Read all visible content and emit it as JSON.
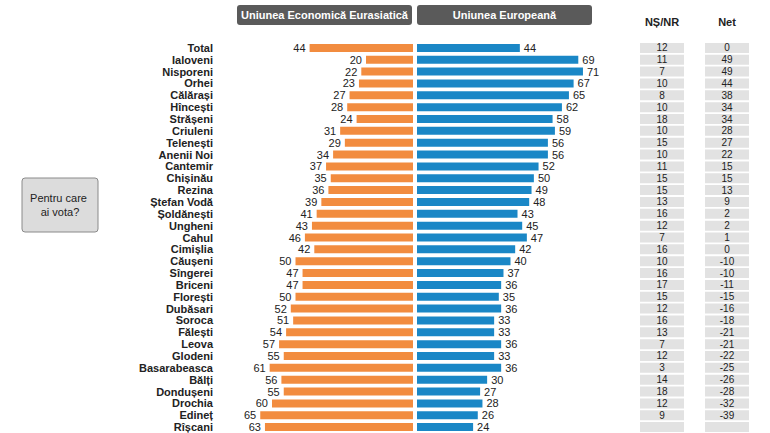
{
  "chart_data": {
    "type": "bar",
    "orientation": "horizontal",
    "ylabel": "Pentru care ai vota?",
    "categories": [
      "Total",
      "Ialoveni",
      "Nisporeni",
      "Orhei",
      "Călărași",
      "Hîncești",
      "Strășeni",
      "Criuleni",
      "Telenești",
      "Anenii Noi",
      "Cantemir",
      "Chișinău",
      "Rezina",
      "Ștefan Vodă",
      "Șoldănești",
      "Ungheni",
      "Cahul",
      "Cimișlia",
      "Căușeni",
      "Sîngerei",
      "Briceni",
      "Florești",
      "Dubăsari",
      "Soroca",
      "Fălești",
      "Leova",
      "Glodeni",
      "Basarabeasca",
      "Bălți",
      "Dondușeni",
      "Drochia",
      "Edineț",
      "Rîșcani"
    ],
    "series": [
      {
        "name": "Uniunea Economică Eurasiatică",
        "color": "#f28c3f",
        "values": [
          44,
          20,
          22,
          23,
          27,
          28,
          24,
          31,
          29,
          34,
          37,
          35,
          36,
          39,
          41,
          43,
          46,
          42,
          50,
          47,
          47,
          50,
          52,
          51,
          54,
          57,
          55,
          61,
          56,
          55,
          60,
          65,
          63
        ]
      },
      {
        "name": "Uniunea Europeană",
        "color": "#1a87c6",
        "values": [
          44,
          69,
          71,
          67,
          65,
          62,
          58,
          59,
          56,
          56,
          52,
          50,
          49,
          48,
          43,
          45,
          47,
          42,
          40,
          37,
          36,
          35,
          36,
          33,
          33,
          36,
          33,
          36,
          30,
          27,
          28,
          26,
          24
        ]
      }
    ],
    "columns": [
      {
        "name": "NȘ/NR",
        "values": [
          12,
          11,
          7,
          10,
          8,
          10,
          18,
          10,
          15,
          10,
          11,
          15,
          15,
          13,
          16,
          12,
          7,
          16,
          10,
          16,
          17,
          15,
          12,
          16,
          13,
          7,
          12,
          3,
          14,
          18,
          12,
          9,
          null
        ]
      },
      {
        "name": "Net",
        "values": [
          0,
          49,
          49,
          44,
          38,
          34,
          34,
          28,
          27,
          22,
          15,
          15,
          13,
          9,
          2,
          2,
          1,
          0,
          -10,
          -10,
          -11,
          -15,
          -16,
          -18,
          -21,
          -21,
          -22,
          -25,
          -26,
          -28,
          -32,
          -39,
          null
        ]
      }
    ],
    "xlim": [
      0,
      80
    ],
    "data_labels": true,
    "tick_labels": "y",
    "grid": false
  }
}
